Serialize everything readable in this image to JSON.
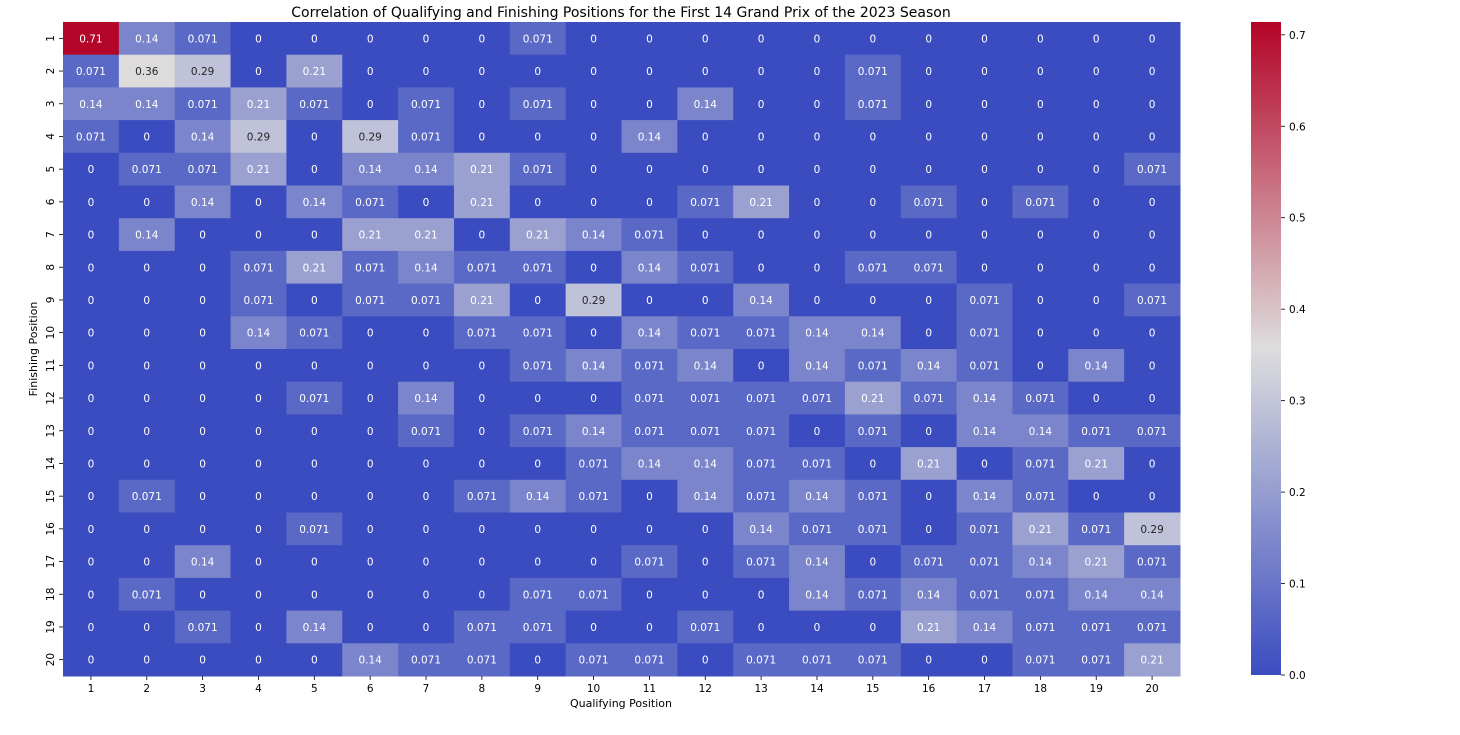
{
  "chart_data": {
    "type": "heatmap",
    "title": "Correlation of Qualifying and Finishing Positions for the First 14 Grand Prix of the 2023 Season",
    "xlabel": "Qualifying Position",
    "ylabel": "Finishing Position",
    "x_categories": [
      "1",
      "2",
      "3",
      "4",
      "5",
      "6",
      "7",
      "8",
      "9",
      "10",
      "11",
      "12",
      "13",
      "14",
      "15",
      "16",
      "17",
      "18",
      "19",
      "20"
    ],
    "y_categories": [
      "1",
      "2",
      "3",
      "4",
      "5",
      "6",
      "7",
      "8",
      "9",
      "10",
      "11",
      "12",
      "13",
      "14",
      "15",
      "16",
      "17",
      "18",
      "19",
      "20"
    ],
    "colormap": "coolwarm",
    "colors": {
      "low": "#3b4cc0",
      "mid": "#dddddd",
      "high": "#b40426",
      "text_light": "#ffffff",
      "text_dark": "#262626"
    },
    "vmin": 0,
    "vmax": 0.714,
    "colorbar_ticks": [
      "0.0",
      "0.1",
      "0.2",
      "0.3",
      "0.4",
      "0.5",
      "0.6",
      "0.7"
    ],
    "colorbar_tick_values": [
      0,
      0.1,
      0.2,
      0.3,
      0.4,
      0.5,
      0.6,
      0.7
    ],
    "values": [
      [
        "0.71",
        "0.14",
        "0.071",
        "0",
        "0",
        "0",
        "0",
        "0",
        "0.071",
        "0",
        "0",
        "0",
        "0",
        "0",
        "0",
        "0",
        "0",
        "0",
        "0",
        "0"
      ],
      [
        "0.071",
        "0.36",
        "0.29",
        "0",
        "0.21",
        "0",
        "0",
        "0",
        "0",
        "0",
        "0",
        "0",
        "0",
        "0",
        "0.071",
        "0",
        "0",
        "0",
        "0",
        "0"
      ],
      [
        "0.14",
        "0.14",
        "0.071",
        "0.21",
        "0.071",
        "0",
        "0.071",
        "0",
        "0.071",
        "0",
        "0",
        "0.14",
        "0",
        "0",
        "0.071",
        "0",
        "0",
        "0",
        "0",
        "0"
      ],
      [
        "0.071",
        "0",
        "0.14",
        "0.29",
        "0",
        "0.29",
        "0.071",
        "0",
        "0",
        "0",
        "0.14",
        "0",
        "0",
        "0",
        "0",
        "0",
        "0",
        "0",
        "0",
        "0"
      ],
      [
        "0",
        "0.071",
        "0.071",
        "0.21",
        "0",
        "0.14",
        "0.14",
        "0.21",
        "0.071",
        "0",
        "0",
        "0",
        "0",
        "0",
        "0",
        "0",
        "0",
        "0",
        "0",
        "0.071"
      ],
      [
        "0",
        "0",
        "0.14",
        "0",
        "0.14",
        "0.071",
        "0",
        "0.21",
        "0",
        "0",
        "0",
        "0.071",
        "0.21",
        "0",
        "0",
        "0.071",
        "0",
        "0.071",
        "0",
        "0"
      ],
      [
        "0",
        "0.14",
        "0",
        "0",
        "0",
        "0.21",
        "0.21",
        "0",
        "0.21",
        "0.14",
        "0.071",
        "0",
        "0",
        "0",
        "0",
        "0",
        "0",
        "0",
        "0",
        "0"
      ],
      [
        "0",
        "0",
        "0",
        "0.071",
        "0.21",
        "0.071",
        "0.14",
        "0.071",
        "0.071",
        "0",
        "0.14",
        "0.071",
        "0",
        "0",
        "0.071",
        "0.071",
        "0",
        "0",
        "0",
        "0"
      ],
      [
        "0",
        "0",
        "0",
        "0.071",
        "0",
        "0.071",
        "0.071",
        "0.21",
        "0",
        "0.29",
        "0",
        "0",
        "0.14",
        "0",
        "0",
        "0",
        "0.071",
        "0",
        "0",
        "0.071"
      ],
      [
        "0",
        "0",
        "0",
        "0.14",
        "0.071",
        "0",
        "0",
        "0.071",
        "0.071",
        "0",
        "0.14",
        "0.071",
        "0.071",
        "0.14",
        "0.14",
        "0",
        "0.071",
        "0",
        "0",
        "0"
      ],
      [
        "0",
        "0",
        "0",
        "0",
        "0",
        "0",
        "0",
        "0",
        "0.071",
        "0.14",
        "0.071",
        "0.14",
        "0",
        "0.14",
        "0.071",
        "0.14",
        "0.071",
        "0",
        "0.14",
        "0"
      ],
      [
        "0",
        "0",
        "0",
        "0",
        "0.071",
        "0",
        "0.14",
        "0",
        "0",
        "0",
        "0.071",
        "0.071",
        "0.071",
        "0.071",
        "0.21",
        "0.071",
        "0.14",
        "0.071",
        "0",
        "0"
      ],
      [
        "0",
        "0",
        "0",
        "0",
        "0",
        "0",
        "0.071",
        "0",
        "0.071",
        "0.14",
        "0.071",
        "0.071",
        "0.071",
        "0",
        "0.071",
        "0",
        "0.14",
        "0.14",
        "0.071",
        "0.071"
      ],
      [
        "0",
        "0",
        "0",
        "0",
        "0",
        "0",
        "0",
        "0",
        "0",
        "0.071",
        "0.14",
        "0.14",
        "0.071",
        "0.071",
        "0",
        "0.21",
        "0",
        "0.071",
        "0.21",
        "0"
      ],
      [
        "0",
        "0.071",
        "0",
        "0",
        "0",
        "0",
        "0",
        "0.071",
        "0.14",
        "0.071",
        "0",
        "0.14",
        "0.071",
        "0.14",
        "0.071",
        "0",
        "0.14",
        "0.071",
        "0",
        "0"
      ],
      [
        "0",
        "0",
        "0",
        "0",
        "0.071",
        "0",
        "0",
        "0",
        "0",
        "0",
        "0",
        "0",
        "0.14",
        "0.071",
        "0.071",
        "0",
        "0.071",
        "0.21",
        "0.071",
        "0.29"
      ],
      [
        "0",
        "0",
        "0.14",
        "0",
        "0",
        "0",
        "0",
        "0",
        "0",
        "0",
        "0.071",
        "0",
        "0.071",
        "0.14",
        "0",
        "0.071",
        "0.071",
        "0.14",
        "0.21",
        "0.071"
      ],
      [
        "0",
        "0.071",
        "0",
        "0",
        "0",
        "0",
        "0",
        "0",
        "0.071",
        "0.071",
        "0",
        "0",
        "0",
        "0.14",
        "0.071",
        "0.14",
        "0.071",
        "0.071",
        "0.14",
        "0.14"
      ],
      [
        "0",
        "0",
        "0.071",
        "0",
        "0.14",
        "0",
        "0",
        "0.071",
        "0.071",
        "0",
        "0",
        "0.071",
        "0",
        "0",
        "0",
        "0.21",
        "0.14",
        "0.071",
        "0.071",
        "0.071"
      ],
      [
        "0",
        "0",
        "0",
        "0",
        "0",
        "0.14",
        "0.071",
        "0.071",
        "0",
        "0.071",
        "0.071",
        "0",
        "0.071",
        "0.071",
        "0.071",
        "0",
        "0",
        "0.071",
        "0.071",
        "0.21"
      ]
    ]
  }
}
